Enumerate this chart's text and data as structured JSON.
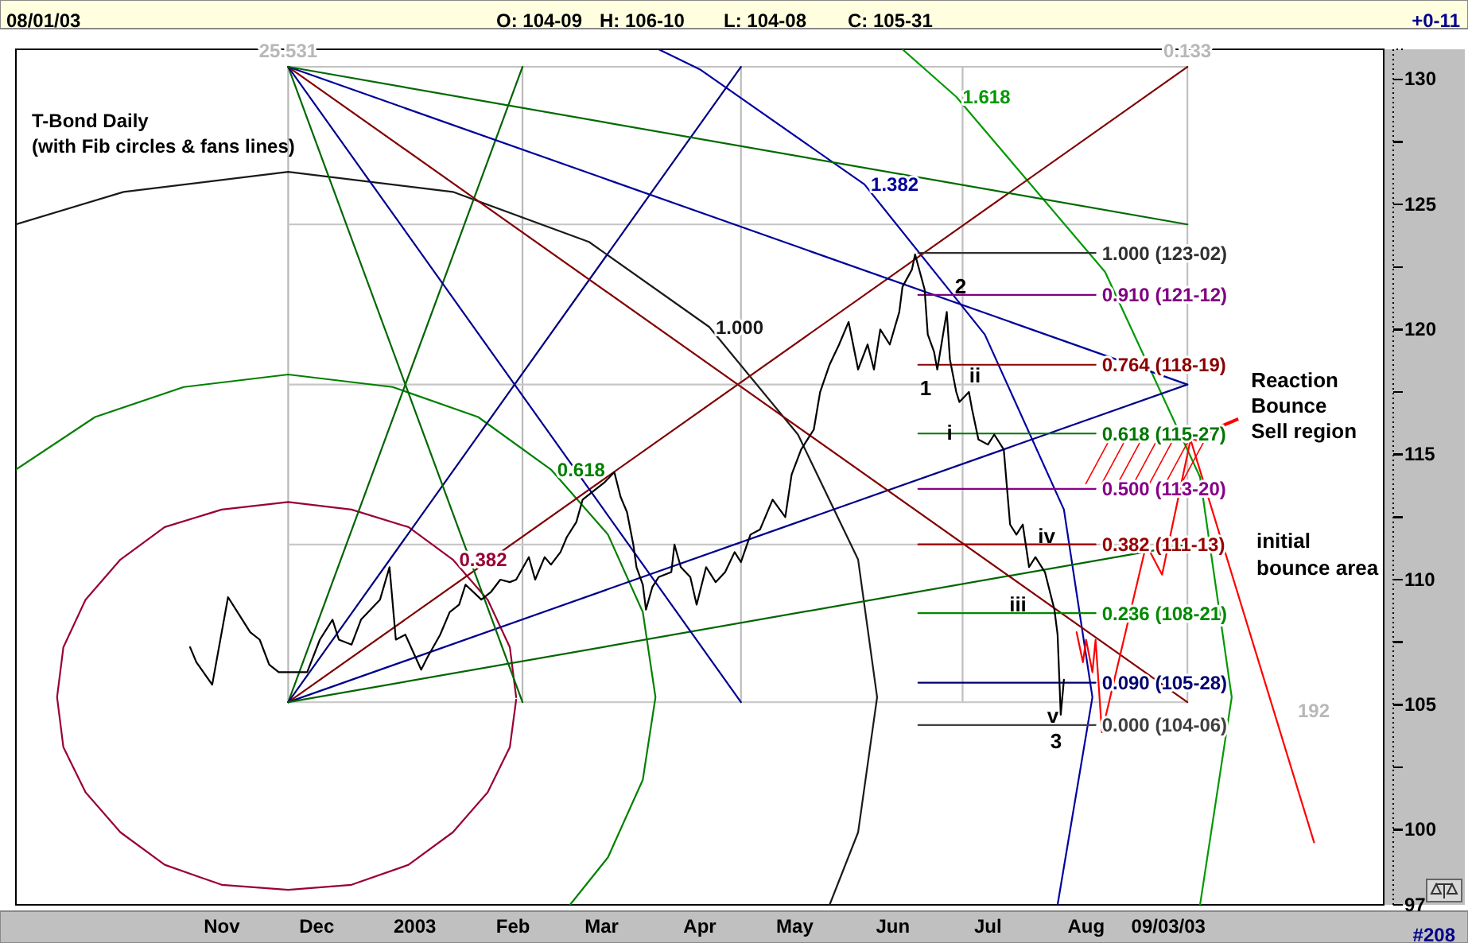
{
  "chart_data": {
    "type": "line",
    "title": "T-Bond Daily",
    "subtitle": "(with Fib circles & fans lines)",
    "xlim": [
      "2002-09-04",
      "2003-11-10"
    ],
    "xticks": [
      {
        "value": "2002-11-08",
        "label": "Nov"
      },
      {
        "value": "2002-12-08",
        "label": "Dec"
      },
      {
        "value": "2003-01-08",
        "label": "2003"
      },
      {
        "value": "2003-02-08",
        "label": "Feb"
      },
      {
        "value": "2003-03-08",
        "label": "Mar"
      },
      {
        "value": "2003-04-08",
        "label": "Apr"
      },
      {
        "value": "2003-05-08",
        "label": "May"
      },
      {
        "value": "2003-06-08",
        "label": "Jun"
      },
      {
        "value": "2003-07-08",
        "label": "Jul"
      },
      {
        "value": "2003-08-08",
        "label": "Aug"
      },
      {
        "value": "2003-09-03",
        "label": "09/03/03"
      }
    ],
    "ylim": [
      97,
      131.2
    ],
    "yticks": [
      97,
      100,
      {
        "value": 102.5,
        "label": null
      },
      105,
      {
        "value": 107.5,
        "label": null
      },
      110,
      {
        "value": 112.5,
        "label": null
      },
      115,
      {
        "value": 117.5,
        "label": null
      },
      120,
      {
        "value": 122.5,
        "label": null
      },
      125,
      {
        "value": 127.5,
        "label": null
      },
      130
    ],
    "line_style": "solid",
    "series": [
      {
        "color": "#b8b8b8",
        "x": [
          "2002-11-29",
          "2002-11-29"
        ],
        "values": [
          105.1,
          130.5
        ]
      },
      {
        "color": "#bababa",
        "x": [
          "2003-02-11",
          "2003-02-11"
        ],
        "values": [
          105.1,
          130.5
        ]
      },
      {
        "color": "#bcbcbc",
        "x": [
          "2003-04-21",
          "2003-04-21"
        ],
        "values": [
          105.1,
          130.5
        ]
      },
      {
        "color": "#bebebe",
        "x": [
          "2003-06-30",
          "2003-06-30"
        ],
        "values": [
          105.1,
          130.5
        ]
      },
      {
        "color": "#c0c0c0",
        "x": [
          "2003-09-09",
          "2003-09-09"
        ],
        "values": [
          105.1,
          130.5
        ]
      },
      {
        "color": "#c2c2c2",
        "x": [
          "2002-11-29",
          "2003-09-09"
        ],
        "values": [
          130.5,
          130.5
        ]
      },
      {
        "color": "#c4c4c4",
        "x": [
          "2002-11-29",
          "2003-09-09"
        ],
        "values": [
          124.2,
          124.2
        ]
      },
      {
        "color": "#c6c6c6",
        "x": [
          "2002-11-29",
          "2003-09-09"
        ],
        "values": [
          117.8,
          117.8
        ]
      },
      {
        "color": "#c8c8c8",
        "x": [
          "2002-11-29",
          "2003-09-09"
        ],
        "values": [
          111.4,
          111.4
        ]
      },
      {
        "color": "#cacaca",
        "x": [
          "2002-11-29",
          "2003-09-09"
        ],
        "values": [
          105.1,
          105.1
        ]
      },
      {
        "name": "0.382",
        "color": "#990033",
        "x": [
          "2003-02-09",
          "2003-02-07",
          "2003-01-31",
          "2003-01-20",
          "2003-01-06",
          "2002-12-19",
          "2002-11-29",
          "2002-11-08",
          "2002-10-21",
          "2002-10-07",
          "2002-09-26",
          "2002-09-19",
          "2002-09-17",
          "2002-09-19",
          "2002-09-26",
          "2002-10-07",
          "2002-10-21",
          "2002-11-08",
          "2002-11-29",
          "2002-12-19",
          "2003-01-06",
          "2003-01-20",
          "2003-01-31",
          "2003-02-07",
          "2003-02-09"
        ],
        "values": [
          105.3,
          107.3,
          109.2,
          110.8,
          112.1,
          112.8,
          113.1,
          112.8,
          112.1,
          110.8,
          109.2,
          107.3,
          105.3,
          103.3,
          101.5,
          99.9,
          98.6,
          97.8,
          97.6,
          97.8,
          98.6,
          99.9,
          101.5,
          103.3,
          105.2
        ]
      },
      {
        "name": "0.618",
        "color": "#008000",
        "x": [
          "2003-02-26",
          "2003-03-10",
          "2003-03-21",
          "2003-03-25",
          "2003-03-21",
          "2003-03-10",
          "2003-02-20",
          "2003-01-28",
          "2003-01-01",
          "2002-11-29",
          "2002-10-27",
          "2002-09-29",
          "2002-09-04"
        ],
        "values": [
          97.0,
          98.9,
          102.0,
          105.3,
          108.7,
          111.8,
          114.4,
          116.5,
          117.7,
          118.2,
          117.7,
          116.5,
          114.4
        ]
      },
      {
        "name": "1.000",
        "color": "#1a1a1a",
        "x": [
          "2003-05-19",
          "2003-05-28",
          "2003-06-03",
          "2003-05-28",
          "2003-05-09",
          "2003-04-11",
          "2003-03-04",
          "2003-01-20",
          "2002-11-29",
          "2002-10-08",
          "2002-09-04"
        ],
        "values": [
          97.0,
          99.9,
          105.3,
          110.8,
          115.8,
          120.1,
          123.5,
          125.5,
          126.3,
          125.5,
          124.2
        ]
      },
      {
        "name": "1.382",
        "color": "#0000a0",
        "x": [
          "2003-07-30",
          "2003-08-10",
          "2003-08-01",
          "2003-07-07",
          "2003-05-30",
          "2003-04-08",
          "2003-03-26"
        ],
        "values": [
          97.0,
          105.3,
          112.8,
          119.8,
          125.8,
          130.4,
          131.2
        ]
      },
      {
        "name": "1.618",
        "color": "#009900",
        "x": [
          "2003-09-13",
          "2003-09-23",
          "2003-09-13",
          "2003-08-14",
          "2003-06-28",
          "2003-06-11"
        ],
        "values": [
          97.0,
          105.3,
          114.1,
          122.3,
          129.3,
          131.2
        ]
      },
      {
        "color": "#006400",
        "x": [
          "2002-11-29",
          "2003-02-11"
        ],
        "values": [
          105.1,
          130.5
        ]
      },
      {
        "color": "#000080",
        "x": [
          "2002-11-29",
          "2003-04-21"
        ],
        "values": [
          105.1,
          130.5
        ]
      },
      {
        "color": "#800000",
        "x": [
          "2002-11-29",
          "2003-09-09"
        ],
        "values": [
          105.1,
          130.5
        ]
      },
      {
        "color": "#00008b",
        "x": [
          "2002-11-29",
          "2003-09-09"
        ],
        "values": [
          105.1,
          117.8
        ]
      },
      {
        "color": "#006600",
        "x": [
          "2002-11-29",
          "2003-09-09"
        ],
        "values": [
          105.1,
          111.4
        ]
      },
      {
        "color": "#006800",
        "x": [
          "2002-11-29",
          "2003-02-11"
        ],
        "values": [
          130.5,
          105.1
        ]
      },
      {
        "color": "#000090",
        "x": [
          "2002-11-29",
          "2003-04-21"
        ],
        "values": [
          130.5,
          105.1
        ]
      },
      {
        "color": "#840000",
        "x": [
          "2002-11-29",
          "2003-09-09"
        ],
        "values": [
          130.5,
          105.1
        ]
      },
      {
        "color": "#000099",
        "x": [
          "2002-11-29",
          "2003-09-09"
        ],
        "values": [
          130.5,
          117.8
        ]
      },
      {
        "color": "#006a00",
        "x": [
          "2002-11-29",
          "2003-09-09"
        ],
        "values": [
          130.5,
          124.2
        ]
      },
      {
        "name": "1.000 (123-02)",
        "color": "#303030",
        "x": [
          "2003-06-16",
          "2003-08-11"
        ],
        "values": [
          123.06,
          123.06
        ]
      },
      {
        "name": "0.910 (121-12)",
        "color": "#800080",
        "x": [
          "2003-06-16",
          "2003-08-11"
        ],
        "values": [
          121.38,
          121.38
        ]
      },
      {
        "name": "0.764 (118-19)",
        "color": "#8b0000",
        "x": [
          "2003-06-16",
          "2003-08-11"
        ],
        "values": [
          118.59,
          118.59
        ]
      },
      {
        "name": "0.618 (115-27)",
        "color": "#007700",
        "x": [
          "2003-06-16",
          "2003-08-11"
        ],
        "values": [
          115.84,
          115.84
        ]
      },
      {
        "name": "0.500 (113-20)",
        "color": "#880088",
        "x": [
          "2003-06-16",
          "2003-08-11"
        ],
        "values": [
          113.63,
          113.63
        ]
      },
      {
        "name": "0.382 (111-13)",
        "color": "#990000",
        "x": [
          "2003-06-16",
          "2003-08-11"
        ],
        "values": [
          111.41,
          111.41
        ]
      },
      {
        "name": "0.236 (108-21)",
        "color": "#008800",
        "x": [
          "2003-06-16",
          "2003-08-11"
        ],
        "values": [
          108.66,
          108.66
        ]
      },
      {
        "name": "0.090 (105-28)",
        "color": "#000070",
        "x": [
          "2003-06-16",
          "2003-08-11"
        ],
        "values": [
          105.88,
          105.88
        ]
      },
      {
        "name": "0.000 (104-06)",
        "color": "#404040",
        "x": [
          "2003-06-16",
          "2003-08-11"
        ],
        "values": [
          104.19,
          104.19
        ]
      },
      {
        "color": "#000000",
        "x": [
          "2002-10-29",
          "2002-10-31",
          "2002-11-05",
          "2002-11-10",
          "2002-11-17",
          "2002-11-20",
          "2002-11-23",
          "2002-11-26",
          "2002-12-05",
          "2002-12-09",
          "2002-12-13",
          "2002-12-15",
          "2002-12-19",
          "2002-12-22",
          "2002-12-28",
          "2002-12-31",
          "2003-01-02",
          "2003-01-05",
          "2003-01-10",
          "2003-01-12",
          "2003-01-16",
          "2003-01-19",
          "2003-01-22",
          "2003-01-24",
          "2003-01-29",
          "2003-02-01",
          "2003-02-04",
          "2003-02-07",
          "2003-02-09",
          "2003-02-13",
          "2003-02-15",
          "2003-02-18",
          "2003-02-20",
          "2003-02-23",
          "2003-02-25",
          "2003-02-28",
          "2003-03-02",
          "2003-03-05",
          "2003-03-09",
          "2003-03-12",
          "2003-03-14",
          "2003-03-16",
          "2003-03-18",
          "2003-03-19",
          "2003-03-21",
          "2003-03-22",
          "2003-03-24",
          "2003-03-26",
          "2003-03-30",
          "2003-03-31",
          "2003-04-02",
          "2003-04-05",
          "2003-04-07",
          "2003-04-10",
          "2003-04-13",
          "2003-04-16",
          "2003-04-19",
          "2003-04-21",
          "2003-04-24",
          "2003-04-27",
          "2003-05-01",
          "2003-05-05",
          "2003-05-07",
          "2003-05-10",
          "2003-05-14",
          "2003-05-16",
          "2003-05-19",
          "2003-05-22",
          "2003-05-25",
          "2003-05-28",
          "2003-05-31",
          "2003-06-02",
          "2003-06-04",
          "2003-06-07",
          "2003-06-10",
          "2003-06-11",
          "2003-06-14",
          "2003-06-15",
          "2003-06-18",
          "2003-06-19",
          "2003-06-21",
          "2003-06-22",
          "2003-06-25",
          "2003-06-26",
          "2003-06-28",
          "2003-06-29",
          "2003-07-02",
          "2003-07-03",
          "2003-07-05",
          "2003-07-08",
          "2003-07-10",
          "2003-07-13",
          "2003-07-15",
          "2003-07-17",
          "2003-07-19",
          "2003-07-21",
          "2003-07-23",
          "2003-07-26",
          "2003-07-29",
          "2003-07-30",
          "2003-07-31",
          "2003-08-01"
        ],
        "values": [
          107.3,
          106.7,
          105.8,
          109.3,
          107.9,
          107.6,
          106.6,
          106.3,
          106.3,
          107.6,
          108.4,
          107.6,
          107.4,
          108.4,
          109.2,
          110.5,
          107.6,
          107.8,
          106.4,
          106.9,
          107.8,
          108.7,
          109.0,
          109.8,
          109.2,
          109.5,
          110.0,
          109.9,
          110.0,
          110.9,
          110.0,
          110.9,
          110.6,
          111.1,
          111.7,
          112.3,
          113.2,
          113.5,
          113.9,
          114.3,
          113.3,
          112.7,
          111.4,
          110.5,
          109.8,
          108.8,
          109.7,
          110.1,
          110.3,
          111.4,
          110.5,
          110.1,
          109.0,
          110.5,
          109.9,
          110.3,
          111.1,
          110.7,
          111.8,
          112.0,
          113.2,
          112.5,
          114.2,
          115.2,
          116.0,
          117.5,
          118.6,
          119.4,
          120.3,
          118.4,
          119.4,
          118.4,
          120.0,
          119.4,
          120.7,
          121.7,
          122.4,
          123.0,
          121.6,
          119.8,
          119.1,
          118.4,
          120.7,
          118.8,
          117.5,
          117.1,
          117.5,
          116.8,
          115.6,
          115.4,
          115.8,
          115.2,
          112.2,
          111.8,
          112.2,
          110.5,
          110.9,
          110.3,
          108.8,
          107.8,
          104.6,
          106.0
        ]
      },
      {
        "color": "#ff0000",
        "x": [
          "2003-08-05",
          "2003-08-07",
          "2003-08-08",
          "2003-08-10",
          "2003-08-11",
          "2003-08-13",
          "2003-08-27",
          "2003-09-01",
          "2003-09-10",
          "2003-10-19"
        ],
        "values": [
          107.9,
          106.7,
          107.6,
          106.3,
          107.6,
          103.9,
          111.4,
          110.2,
          115.6,
          99.5
        ]
      }
    ],
    "annotations": [
      "08/01/03",
      "O: 104-09",
      "H: 106-10",
      "L: 104-08",
      "C: 105-31",
      "+0-11",
      "#208",
      "2",
      "1",
      "ii",
      "i",
      "iv",
      "iii",
      "v",
      "3",
      "192",
      "initial\nbounce area",
      {
        "text": "25.531",
        "x": "2002-11-29",
        "y": 130.5
      },
      {
        "text": "0.133",
        "x": "2003-09-09",
        "y": 130.5
      },
      {
        "text": "Reaction\nBounce\nSell region",
        "x": "2003-09-10",
        "y": 115.6
      }
    ]
  }
}
